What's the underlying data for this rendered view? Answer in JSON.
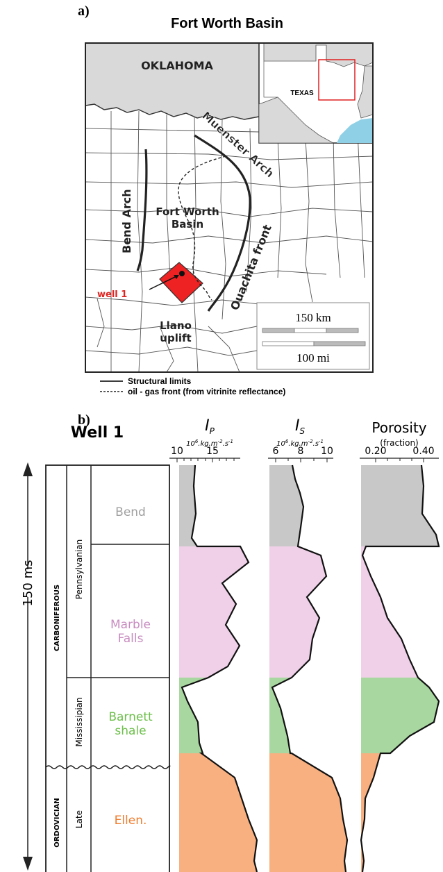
{
  "panel_a": {
    "label": "a)",
    "title": "Fort Worth Basin",
    "labels": {
      "oklahoma": "OKLAHOMA",
      "texas": "TEXAS",
      "muenster": "Muenster Arch",
      "bend_arch": "Bend Arch",
      "fw_basin_1": "Fort Worth",
      "fw_basin_2": "Basin",
      "ouachita": "Ouachita front",
      "well": "well 1",
      "llano_1": "Llano",
      "llano_2": "uplift"
    },
    "scale_km": "150 km",
    "scale_mi": "100 mi",
    "legend": {
      "solid": "Structural limits",
      "dashed": "oil - gas front (from vitrinite reflectance)"
    },
    "colors": {
      "state": "#d9d9d9",
      "gulf": "#8fd0e6",
      "well_county": "#ee2222",
      "well_label": "#e0231f",
      "inset_box": "#e02020"
    }
  },
  "panel_b": {
    "label": "b)",
    "title": "Well 1",
    "time_label": "150 ms",
    "strat": {
      "systems": [
        "CARBONIFEROUS",
        "ORDOVICIAN"
      ],
      "series": [
        "Pennsylvanian",
        "Mississipian",
        "Late"
      ],
      "formations": [
        {
          "name_lines": [
            "Bend"
          ],
          "color": "#a0a0a0"
        },
        {
          "name_lines": [
            "Marble",
            "Falls"
          ],
          "color": "#c88cc0"
        },
        {
          "name_lines": [
            "Barnett",
            "shale"
          ],
          "color": "#6cbf4a"
        },
        {
          "name_lines": [
            "Ellen."
          ],
          "color": "#f07e30"
        }
      ]
    },
    "fills": {
      "bend": "#c8c8c8",
      "marble": "#efd0e8",
      "barnett": "#a8d8a0",
      "ellen": "#f8b080"
    },
    "logs": [
      {
        "symbol": "I",
        "subscript": "P",
        "units_base": "10",
        "units_exp": "6",
        "units_rest": ".kg.m",
        "units_exp2": "-2",
        "units_rest2": ".s",
        "units_exp3": "-1",
        "ticks": [
          "10",
          "15"
        ],
        "range": [
          9,
          19
        ]
      },
      {
        "symbol": "I",
        "subscript": "S",
        "units_base": "10",
        "units_exp": "6",
        "units_rest": ".kg.m",
        "units_exp2": "-2",
        "units_rest2": ".s",
        "units_exp3": "-1",
        "ticks": [
          "6",
          "8",
          "10"
        ],
        "range": [
          5.8,
          10.2
        ]
      },
      {
        "title": "Porosity",
        "units": "(fraction)",
        "ticks": [
          "0.20",
          "0.40"
        ],
        "range": [
          0.15,
          0.45
        ]
      }
    ]
  }
}
